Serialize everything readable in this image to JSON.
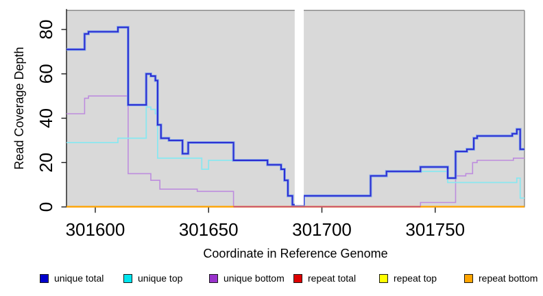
{
  "chart_data": {
    "type": "line",
    "subtype": "step-coverage",
    "title": "",
    "xlabel": "Coordinate in Reference Genome",
    "ylabel": "Read Coverage Depth",
    "xlim": [
      301587.3,
      301789.4
    ],
    "ylim": [
      0,
      88.6
    ],
    "x_ticks": [
      301600,
      301650,
      301700,
      301750
    ],
    "y_ticks": [
      0,
      20,
      40,
      60,
      80
    ],
    "grid": false,
    "panel_bg": "#d9d9d9",
    "border_color": "#808080",
    "axis_color": "#1a1a1a",
    "no_data_gap": {
      "from": 301688,
      "to": 301692
    },
    "bottom_blend": {
      "from": 301661,
      "to": 301743.5,
      "color": "#c84a74"
    },
    "legend_position": "bottom",
    "series": [
      {
        "name": "unique total",
        "legend_color": "#0000cc",
        "line_color": "#2b2bd0",
        "halo_color": "#7fa3ec",
        "steps": [
          [
            301587.3,
            71
          ],
          [
            301595.3,
            78
          ],
          [
            301597,
            79
          ],
          [
            301610,
            81
          ],
          [
            301614.5,
            46
          ],
          [
            301622.5,
            60
          ],
          [
            301624.5,
            59
          ],
          [
            301626.5,
            57
          ],
          [
            301627.5,
            37
          ],
          [
            301629,
            31
          ],
          [
            301632.5,
            30
          ],
          [
            301638.5,
            24
          ],
          [
            301641,
            29
          ],
          [
            301661,
            21
          ],
          [
            301676,
            19
          ],
          [
            301682,
            17
          ],
          [
            301683.5,
            12
          ],
          [
            301685,
            5
          ],
          [
            301687,
            1
          ],
          [
            301692,
            5
          ],
          [
            301721.5,
            14
          ],
          [
            301728.5,
            16
          ],
          [
            301743.5,
            18
          ],
          [
            301755.5,
            13
          ],
          [
            301759,
            25
          ],
          [
            301764,
            26
          ],
          [
            301767,
            31
          ],
          [
            301768.5,
            32
          ],
          [
            301784,
            33
          ],
          [
            301786,
            35
          ],
          [
            301787.5,
            26
          ]
        ]
      },
      {
        "name": "unique top",
        "legend_color": "#00e5ee",
        "line_color": "#8ae7f0",
        "steps": [
          [
            301587.3,
            29
          ],
          [
            301610,
            31
          ],
          [
            301622.5,
            45
          ],
          [
            301624.5,
            44
          ],
          [
            301626.5,
            42
          ],
          [
            301627.5,
            22
          ],
          [
            301647,
            17
          ],
          [
            301650,
            21
          ],
          [
            301676,
            19
          ],
          [
            301682,
            17
          ],
          [
            301683.5,
            12
          ],
          [
            301685,
            5
          ],
          [
            301687,
            1
          ],
          [
            301692,
            5
          ],
          [
            301721.5,
            14
          ],
          [
            301728.5,
            16
          ],
          [
            301755.5,
            11
          ],
          [
            301786,
            13
          ],
          [
            301787.5,
            4
          ]
        ]
      },
      {
        "name": "unique bottom",
        "legend_color": "#9932cc",
        "line_color": "#bd8cde",
        "steps": [
          [
            301587.3,
            42
          ],
          [
            301595.3,
            49
          ],
          [
            301597,
            50
          ],
          [
            301614.5,
            15
          ],
          [
            301624.5,
            12
          ],
          [
            301628.5,
            8
          ],
          [
            301645,
            7
          ],
          [
            301661,
            0
          ],
          [
            301743.5,
            2
          ],
          [
            301759,
            14
          ],
          [
            301763.5,
            15
          ],
          [
            301766.5,
            20
          ],
          [
            301768.5,
            21
          ],
          [
            301784.5,
            22
          ]
        ]
      },
      {
        "name": "repeat total",
        "legend_color": "#dd0000",
        "line_color": "#dd0000",
        "steps": [
          [
            301587.3,
            0
          ]
        ]
      },
      {
        "name": "repeat top",
        "legend_color": "#ffff00",
        "line_color": "#ffff00",
        "steps": [
          [
            301587.3,
            0
          ]
        ]
      },
      {
        "name": "repeat bottom",
        "legend_color": "#ffa500",
        "line_color": "#ffa500",
        "steps": [
          [
            301587.3,
            0
          ]
        ]
      }
    ]
  },
  "legend": {
    "items": [
      {
        "label": "unique total"
      },
      {
        "label": "unique top"
      },
      {
        "label": "unique bottom"
      },
      {
        "label": "repeat total"
      },
      {
        "label": "repeat top"
      },
      {
        "label": "repeat bottom"
      }
    ]
  }
}
